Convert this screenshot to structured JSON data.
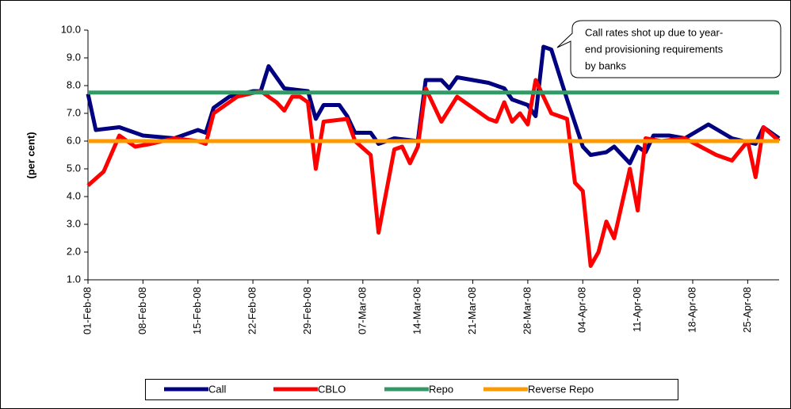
{
  "chart_data": {
    "type": "line",
    "y_label": "(per cent)",
    "annotation": [
      "Call rates shot up due to year-",
      "end provisioning requirements",
      "by banks"
    ],
    "xlim": [
      "01-Feb-08",
      "29-Apr-08"
    ],
    "xticks": [
      "01-Feb-08",
      "08-Feb-08",
      "15-Feb-08",
      "22-Feb-08",
      "29-Feb-08",
      "07-Mar-08",
      "14-Mar-08",
      "21-Mar-08",
      "28-Mar-08",
      "04-Apr-08",
      "11-Apr-08",
      "18-Apr-08",
      "25-Apr-08"
    ],
    "ylim": [
      1,
      10
    ],
    "yticks": [
      {
        "value": 1,
        "label": "1.0"
      },
      {
        "value": 2,
        "label": "2.0"
      },
      {
        "value": 3,
        "label": "3.0"
      },
      {
        "value": 4,
        "label": "4.0"
      },
      {
        "value": 5,
        "label": "5.0"
      },
      {
        "value": 6,
        "label": "6.0"
      },
      {
        "value": 7,
        "label": "7.0"
      },
      {
        "value": 8,
        "label": "8.0"
      },
      {
        "value": 9,
        "label": "9.0"
      },
      {
        "value": 10,
        "label": "10.0"
      }
    ],
    "legend": "bottom",
    "series": [
      {
        "name": "Call",
        "color": "#000080",
        "x": [
          "01-Feb-08",
          "02-Feb-08",
          "05-Feb-08",
          "08-Feb-08",
          "12-Feb-08",
          "15-Feb-08",
          "16-Feb-08",
          "17-Feb-08",
          "19-Feb-08",
          "22-Feb-08",
          "23-Feb-08",
          "24-Feb-08",
          "26-Feb-08",
          "29-Feb-08",
          "01-Mar-08",
          "02-Mar-08",
          "04-Mar-08",
          "05-Mar-08",
          "06-Mar-08",
          "08-Mar-08",
          "09-Mar-08",
          "11-Mar-08",
          "14-Mar-08",
          "15-Mar-08",
          "17-Mar-08",
          "18-Mar-08",
          "19-Mar-08",
          "23-Mar-08",
          "25-Mar-08",
          "26-Mar-08",
          "28-Mar-08",
          "29-Mar-08",
          "30-Mar-08",
          "31-Mar-08",
          "02-Apr-08",
          "04-Apr-08",
          "05-Apr-08",
          "07-Apr-08",
          "08-Apr-08",
          "10-Apr-08",
          "11-Apr-08",
          "12-Apr-08",
          "13-Apr-08",
          "15-Apr-08",
          "17-Apr-08",
          "20-Apr-08",
          "23-Apr-08",
          "26-Apr-08",
          "27-Apr-08",
          "29-Apr-08"
        ],
        "values": [
          7.7,
          6.4,
          6.5,
          6.2,
          6.1,
          6.4,
          6.3,
          7.2,
          7.6,
          7.8,
          7.8,
          8.7,
          7.9,
          7.8,
          6.8,
          7.3,
          7.3,
          6.9,
          6.3,
          6.3,
          5.9,
          6.1,
          6.0,
          8.2,
          8.2,
          7.9,
          8.3,
          8.1,
          7.9,
          7.5,
          7.3,
          6.9,
          9.4,
          9.3,
          7.5,
          5.8,
          5.5,
          5.6,
          5.8,
          5.2,
          5.8,
          5.6,
          6.2,
          6.2,
          6.1,
          6.6,
          6.1,
          5.9,
          6.5,
          6.1
        ]
      },
      {
        "name": "CBLO",
        "color": "#ff0000",
        "x": [
          "01-Feb-08",
          "03-Feb-08",
          "05-Feb-08",
          "07-Feb-08",
          "09-Feb-08",
          "12-Feb-08",
          "15-Feb-08",
          "16-Feb-08",
          "17-Feb-08",
          "20-Feb-08",
          "23-Feb-08",
          "25-Feb-08",
          "26-Feb-08",
          "27-Feb-08",
          "28-Feb-08",
          "29-Feb-08",
          "01-Mar-08",
          "02-Mar-08",
          "05-Mar-08",
          "06-Mar-08",
          "08-Mar-08",
          "09-Mar-08",
          "11-Mar-08",
          "12-Mar-08",
          "13-Mar-08",
          "14-Mar-08",
          "15-Mar-08",
          "17-Mar-08",
          "19-Mar-08",
          "23-Mar-08",
          "24-Mar-08",
          "25-Mar-08",
          "26-Mar-08",
          "27-Mar-08",
          "28-Mar-08",
          "29-Mar-08",
          "31-Mar-08",
          "02-Apr-08",
          "03-Apr-08",
          "04-Apr-08",
          "05-Apr-08",
          "06-Apr-08",
          "07-Apr-08",
          "08-Apr-08",
          "10-Apr-08",
          "11-Apr-08",
          "12-Apr-08",
          "14-Apr-08",
          "17-Apr-08",
          "21-Apr-08",
          "23-Apr-08",
          "25-Apr-08",
          "26-Apr-08",
          "27-Apr-08",
          "29-Apr-08"
        ],
        "values": [
          4.4,
          4.9,
          6.2,
          5.8,
          5.9,
          6.1,
          6.0,
          5.9,
          7.0,
          7.6,
          7.8,
          7.4,
          7.1,
          7.6,
          7.6,
          7.4,
          5.0,
          6.7,
          6.8,
          6.0,
          5.5,
          2.7,
          5.7,
          5.8,
          5.2,
          5.8,
          7.9,
          6.7,
          7.6,
          6.8,
          6.7,
          7.4,
          6.7,
          7.0,
          6.6,
          8.2,
          7.0,
          6.8,
          4.5,
          4.2,
          1.5,
          2.0,
          3.1,
          2.5,
          5.0,
          3.5,
          6.1,
          6.0,
          6.1,
          5.5,
          5.3,
          6.0,
          4.7,
          6.5,
          6.0
        ]
      },
      {
        "name": "Repo",
        "color": "#339966",
        "x": [
          "01-Feb-08",
          "29-Apr-08"
        ],
        "values": [
          7.75,
          7.75
        ]
      },
      {
        "name": "Reverse Repo",
        "color": "#ff9900",
        "x": [
          "01-Feb-08",
          "29-Apr-08"
        ],
        "values": [
          6.0,
          6.0
        ]
      }
    ]
  }
}
